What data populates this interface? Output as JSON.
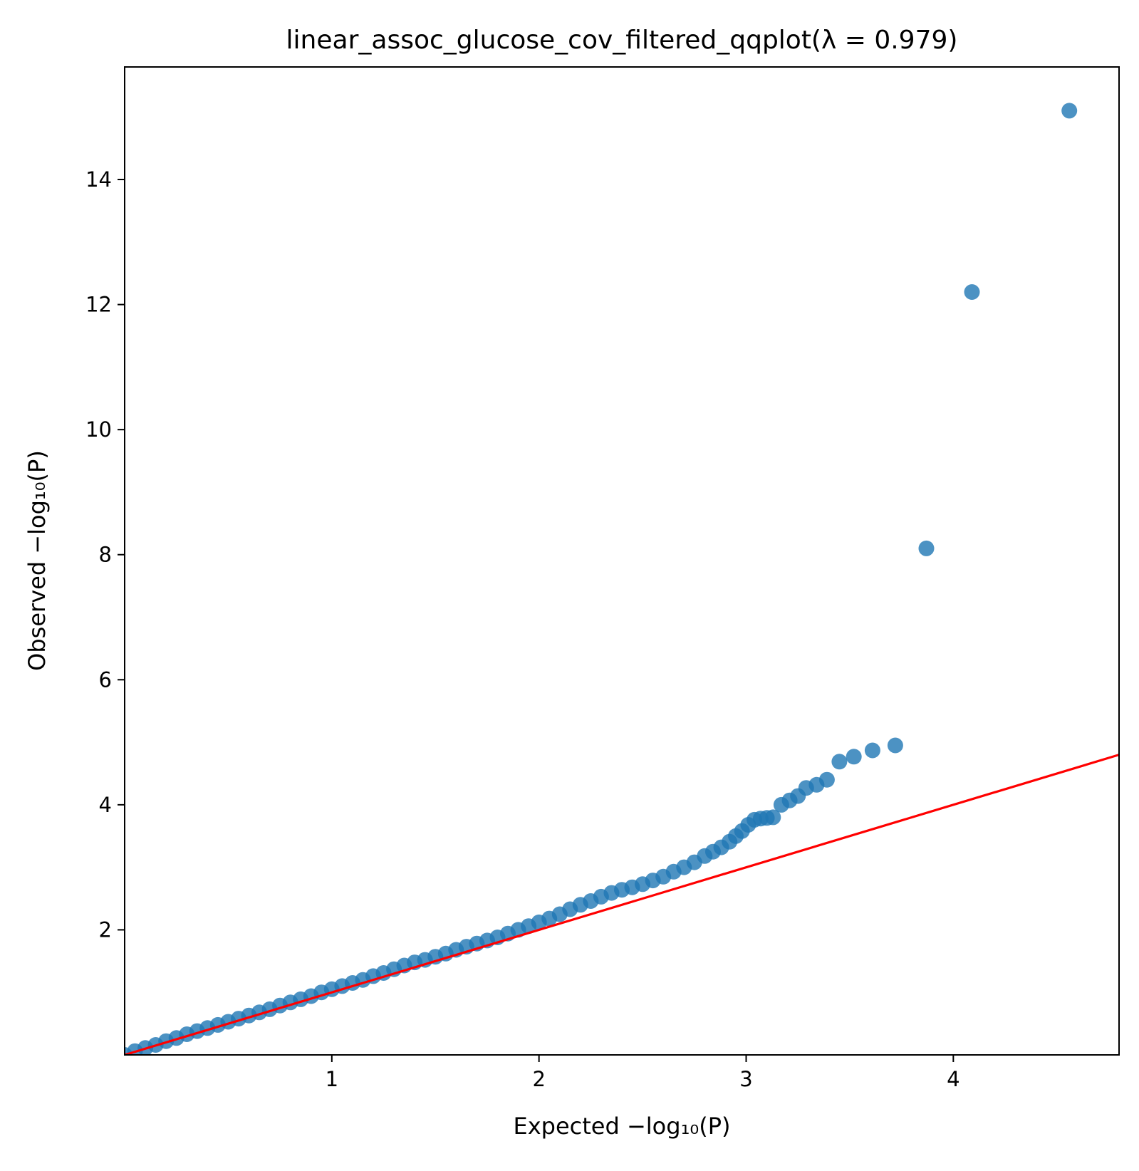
{
  "chart_data": {
    "type": "scatter",
    "title": "linear_assoc_glucose_cov_filtered_qqplot(λ = 0.979)",
    "xlabel": "Expected −log₁₀(P)",
    "ylabel": "Observed −log₁₀(P)",
    "xlim": [
      0.0,
      4.8
    ],
    "ylim": [
      0.0,
      15.8
    ],
    "xticks": [
      "1",
      "2",
      "3",
      "4"
    ],
    "yticks": [
      "2",
      "4",
      "6",
      "8",
      "10",
      "12",
      "14"
    ],
    "grid": false,
    "legend": "none",
    "colors": {
      "points": "#1f77b4",
      "reference_line": "#ff0000"
    },
    "reference_line": {
      "from": [
        0.0,
        0.0
      ],
      "to": [
        4.8,
        4.8
      ]
    },
    "series": [
      {
        "x": [
          0.0,
          0.05,
          0.1,
          0.15,
          0.2,
          0.25,
          0.3,
          0.35,
          0.4,
          0.45,
          0.5,
          0.55,
          0.6,
          0.65,
          0.7,
          0.75,
          0.8,
          0.85,
          0.9,
          0.95,
          1.0,
          1.05,
          1.1,
          1.15,
          1.2,
          1.25,
          1.3,
          1.35,
          1.4,
          1.45,
          1.5,
          1.55,
          1.6,
          1.65,
          1.7,
          1.75,
          1.8,
          1.85,
          1.9,
          1.95,
          2.0,
          2.05,
          2.1,
          2.15,
          2.2,
          2.25,
          2.3,
          2.35,
          2.4,
          2.45,
          2.5,
          2.55,
          2.6,
          2.65,
          2.7,
          2.75,
          2.8,
          2.84,
          2.88,
          2.92,
          2.95,
          2.98,
          3.01,
          3.04,
          3.07,
          3.1,
          3.13,
          3.17,
          3.21,
          3.25,
          3.29,
          3.34,
          3.39,
          3.45,
          3.52,
          3.61,
          3.72,
          3.87,
          4.09,
          4.56
        ],
        "y": [
          0.0,
          0.06,
          0.11,
          0.16,
          0.22,
          0.27,
          0.33,
          0.38,
          0.43,
          0.48,
          0.53,
          0.58,
          0.63,
          0.68,
          0.73,
          0.79,
          0.84,
          0.89,
          0.94,
          1.0,
          1.05,
          1.1,
          1.15,
          1.2,
          1.26,
          1.31,
          1.37,
          1.43,
          1.48,
          1.52,
          1.57,
          1.62,
          1.68,
          1.73,
          1.78,
          1.83,
          1.88,
          1.94,
          2.0,
          2.06,
          2.12,
          2.18,
          2.25,
          2.33,
          2.4,
          2.46,
          2.53,
          2.59,
          2.64,
          2.68,
          2.73,
          2.79,
          2.85,
          2.93,
          3.0,
          3.08,
          3.18,
          3.25,
          3.32,
          3.41,
          3.5,
          3.58,
          3.68,
          3.76,
          3.78,
          3.79,
          3.8,
          4.0,
          4.07,
          4.14,
          4.27,
          4.32,
          4.4,
          4.69,
          4.77,
          4.87,
          4.95,
          8.1,
          12.2,
          15.1
        ]
      }
    ]
  }
}
